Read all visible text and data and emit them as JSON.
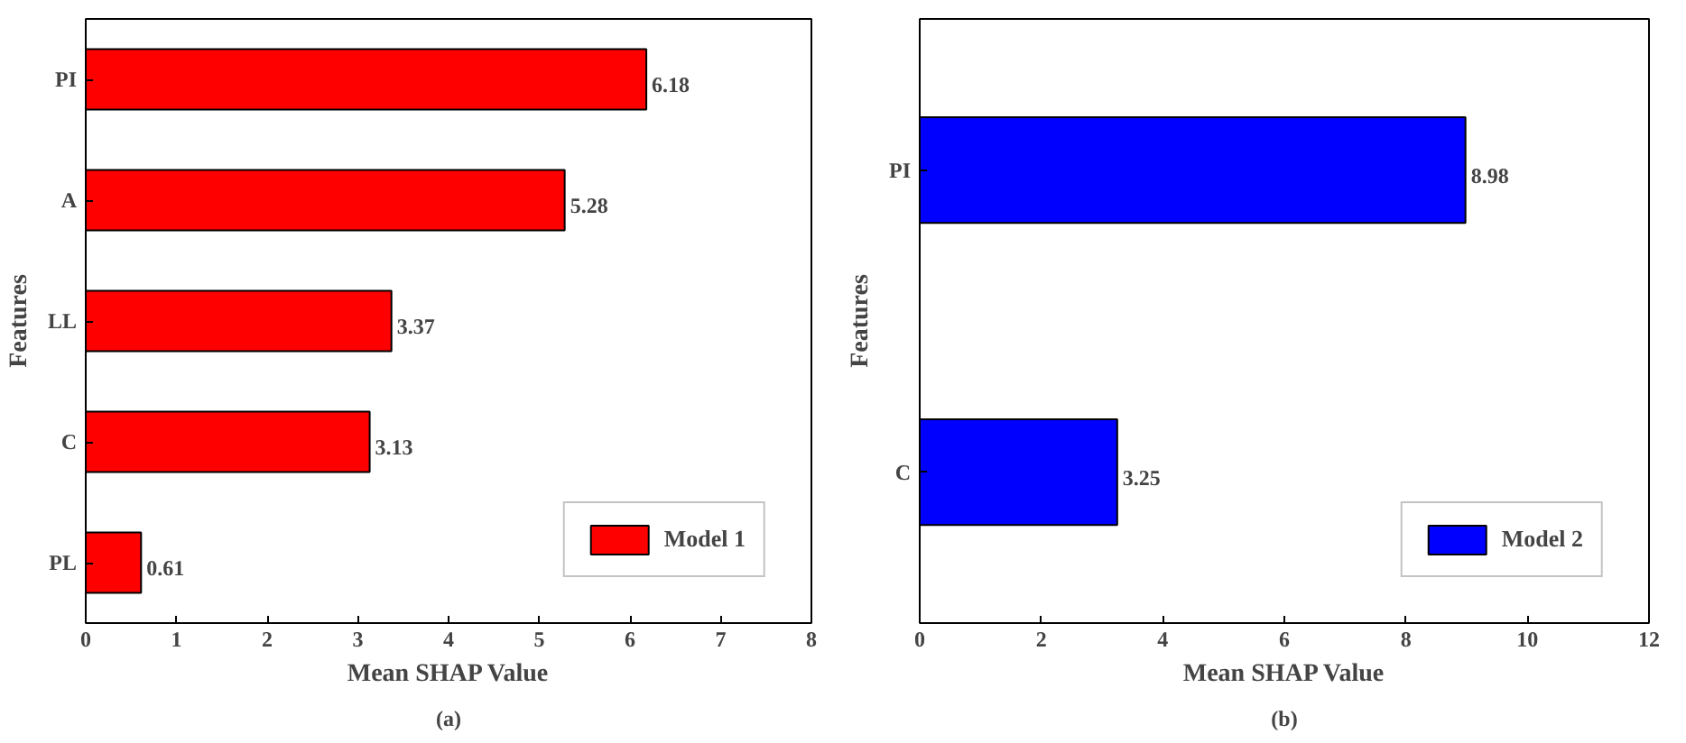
{
  "chart_data": [
    {
      "type": "bar",
      "orientation": "horizontal",
      "categories": [
        "PI",
        "A",
        "LL",
        "C",
        "PL"
      ],
      "series": [
        {
          "name": "Model 1",
          "color": "#ff0000",
          "values": [
            6.18,
            5.28,
            3.37,
            3.13,
            0.61
          ]
        }
      ],
      "xlim": [
        0,
        8
      ],
      "xticks": [
        0,
        1,
        2,
        3,
        4,
        5,
        6,
        7,
        8
      ],
      "xlabel": "Mean SHAP Value",
      "ylabel": "Features",
      "data_labels": true,
      "legend": "bottom right",
      "annotations": [
        "(a)"
      ]
    },
    {
      "type": "bar",
      "orientation": "horizontal",
      "categories": [
        "PI",
        "C"
      ],
      "series": [
        {
          "name": "Model 2",
          "color": "#0000ff",
          "values": [
            8.98,
            3.25
          ]
        }
      ],
      "xlim": [
        0,
        12
      ],
      "xticks": [
        0,
        2,
        4,
        6,
        8,
        10,
        12
      ],
      "xlabel": "Mean SHAP Value",
      "ylabel": "Features",
      "data_labels": true,
      "legend": "bottom right",
      "annotations": [
        "(b)"
      ]
    }
  ]
}
